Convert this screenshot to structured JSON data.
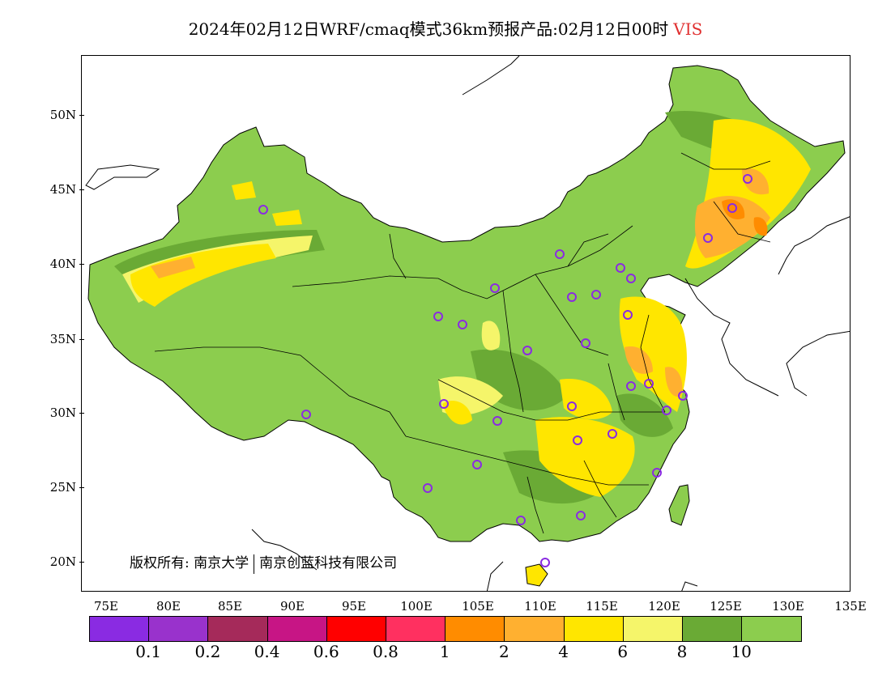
{
  "title": {
    "main": "2024年02月12日WRF/cmaq模式36km预报产品:02月12日00时",
    "variable": "VIS",
    "variable_color": "#e03030"
  },
  "y_axis_labels": [
    "50N",
    "45N",
    "40N",
    "35N",
    "30N",
    "25N",
    "20N"
  ],
  "x_axis_labels": [
    "75E",
    "80E",
    "85E",
    "90E",
    "95E",
    "100E",
    "105E",
    "110E",
    "115E",
    "120E",
    "125E",
    "130E",
    "135E"
  ],
  "copyright": {
    "prefix": "版权所有:",
    "org1": "南京大学",
    "org2": "南京创蓝科技有限公司"
  },
  "colorbar": {
    "colors": [
      "#8a2be2",
      "#9932cc",
      "#a52a5a",
      "#c71585",
      "#ff0000",
      "#ff3060",
      "#ff8c00",
      "#ffb030",
      "#ffe600",
      "#f5f56a",
      "#6aaa35",
      "#8ccd4e"
    ],
    "labels": [
      "0.1",
      "0.2",
      "0.4",
      "0.6",
      "0.8",
      "1",
      "2",
      "4",
      "6",
      "8",
      "10"
    ]
  },
  "map": {
    "projection": "lat-lon",
    "lon_range": [
      73,
      135
    ],
    "lat_range": [
      18,
      54
    ],
    "station_marker_color": "#8a2be2",
    "background_class_color": "#8ccd4e"
  }
}
